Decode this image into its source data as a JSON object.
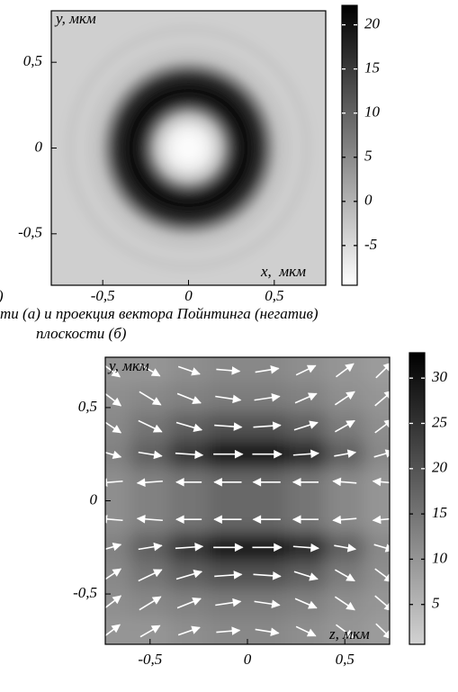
{
  "chart_data": [
    {
      "type": "radial_heatmap",
      "xlabel": "x,  мкм",
      "ylabel": "y, мкм",
      "xlim": [
        -0.8,
        0.8
      ],
      "ylim": [
        -0.8,
        0.8
      ],
      "xticks": [
        {
          "value": -0.5,
          "label": "-0,5"
        },
        0,
        {
          "value": 0.5,
          "label": "0,5"
        }
      ],
      "yticks": [
        {
          "value": -0.5,
          "label": "-0,5"
        },
        0,
        {
          "value": 0.5,
          "label": "0,5"
        }
      ],
      "r": [
        0.08,
        0.14,
        0.2,
        0.25,
        0.3,
        0.38,
        0.45,
        0.5,
        0.55,
        0.6,
        0.66,
        0.72,
        0.8,
        1.2
      ],
      "values": [
        -9,
        -7.5,
        -3,
        8,
        18,
        21,
        17,
        6,
        -2,
        -2.5,
        -3.5,
        -2.5,
        -3.5,
        -3.5
      ],
      "colorbar": {
        "lim": [
          -9.5,
          22.2
        ],
        "ticks": [
          -5,
          0,
          5,
          10,
          15,
          20
        ]
      },
      "colormap": [
        "#ffffff",
        "#000000"
      ]
    },
    {
      "type": "vector_heatmap",
      "xlabel": "z, мкм",
      "ylabel": "y, мкм",
      "xlim": [
        -0.73,
        0.73
      ],
      "ylim": [
        -0.77,
        0.77
      ],
      "xticks": [
        {
          "value": -0.5,
          "label": "-0,5"
        },
        0,
        {
          "value": 0.5,
          "label": "0,5"
        }
      ],
      "yticks": [
        {
          "value": -0.5,
          "label": "-0,5"
        },
        0,
        {
          "value": 0.5,
          "label": "0,5"
        }
      ],
      "x": [
        -0.7,
        -0.5,
        -0.3,
        -0.1,
        0.1,
        0.3,
        0.5,
        0.7
      ],
      "y": [
        0.7,
        0.55,
        0.4,
        0.25,
        0.1,
        -0.1,
        -0.25,
        -0.4,
        -0.55,
        -0.7
      ],
      "values": [
        [
          10,
          10,
          11,
          12,
          12,
          11,
          10,
          9
        ],
        [
          11,
          12,
          13,
          14,
          14,
          13,
          11,
          10
        ],
        [
          12,
          15,
          18,
          20,
          20,
          18,
          14,
          11
        ],
        [
          13,
          18,
          24,
          29,
          30,
          26,
          18,
          12
        ],
        [
          11,
          13,
          15,
          17,
          17,
          15,
          12,
          10
        ],
        [
          11,
          13,
          15,
          17,
          17,
          15,
          12,
          10
        ],
        [
          13,
          18,
          24,
          29,
          30,
          26,
          18,
          12
        ],
        [
          12,
          15,
          18,
          20,
          20,
          18,
          14,
          11
        ],
        [
          11,
          12,
          13,
          14,
          14,
          13,
          11,
          10
        ],
        [
          10,
          10,
          11,
          12,
          12,
          11,
          10,
          9
        ]
      ],
      "u": [
        [
          0.09,
          0.1,
          0.11,
          0.12,
          0.12,
          0.1,
          0.09,
          0.08
        ],
        [
          0.1,
          0.11,
          0.12,
          0.13,
          0.13,
          0.11,
          0.1,
          0.09
        ],
        [
          0.1,
          0.12,
          0.13,
          0.14,
          0.14,
          0.12,
          0.1,
          0.09
        ],
        [
          0.1,
          0.12,
          0.14,
          0.15,
          0.15,
          0.13,
          0.11,
          0.1
        ],
        [
          -0.12,
          -0.13,
          -0.13,
          -0.14,
          -0.14,
          -0.13,
          -0.12,
          -0.11
        ],
        [
          -0.12,
          -0.13,
          -0.13,
          -0.14,
          -0.14,
          -0.13,
          -0.12,
          -0.11
        ],
        [
          0.1,
          0.12,
          0.14,
          0.15,
          0.15,
          0.13,
          0.11,
          0.1
        ],
        [
          0.1,
          0.12,
          0.13,
          0.14,
          0.14,
          0.12,
          0.1,
          0.09
        ],
        [
          0.1,
          0.11,
          0.12,
          0.13,
          0.13,
          0.11,
          0.1,
          0.09
        ],
        [
          0.09,
          0.1,
          0.11,
          0.12,
          0.12,
          0.1,
          0.09,
          0.08
        ]
      ],
      "v": [
        [
          -0.07,
          -0.06,
          -0.04,
          -0.01,
          0.02,
          0.05,
          0.07,
          0.08
        ],
        [
          -0.08,
          -0.07,
          -0.05,
          -0.02,
          0.02,
          0.05,
          0.07,
          0.08
        ],
        [
          -0.07,
          -0.06,
          -0.04,
          -0.01,
          0.01,
          0.04,
          0.06,
          0.07
        ],
        [
          -0.03,
          -0.02,
          -0.01,
          0,
          0,
          0.01,
          0.02,
          0.03
        ],
        [
          -0.01,
          -0.01,
          0,
          0,
          0,
          0,
          0.01,
          0.01
        ],
        [
          0.01,
          0.01,
          0,
          0,
          0,
          0,
          -0.01,
          -0.01
        ],
        [
          0.03,
          0.02,
          0.01,
          0,
          0,
          -0.01,
          -0.02,
          -0.03
        ],
        [
          0.07,
          0.06,
          0.04,
          0.01,
          -0.01,
          -0.04,
          -0.06,
          -0.07
        ],
        [
          0.08,
          0.07,
          0.05,
          0.02,
          -0.02,
          -0.05,
          -0.07,
          -0.08
        ],
        [
          0.07,
          0.06,
          0.04,
          0.01,
          -0.02,
          -0.05,
          -0.07,
          -0.08
        ]
      ],
      "arrow_color": "#ffffff",
      "colorbar": {
        "lim": [
          0.6,
          32.8
        ],
        "ticks": [
          5,
          10,
          15,
          20,
          25,
          30
        ]
      },
      "colormap": [
        "#d2d2d2",
        "#000000"
      ]
    }
  ],
  "panel_label": ")",
  "caption": [
    "ти (а) и проекция вектора Пойнтинга (негатив)",
    "плоскости (б)"
  ]
}
